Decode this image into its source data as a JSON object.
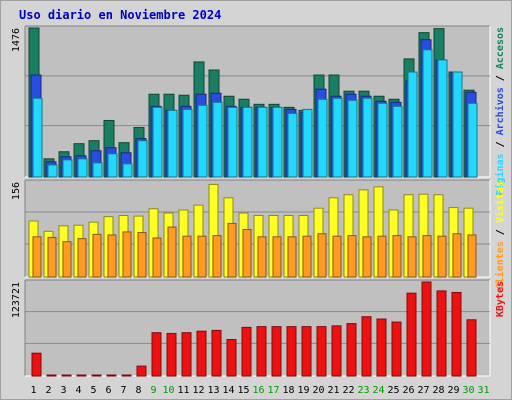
{
  "chart_data": {
    "type": "bar",
    "title": "Uso diario en Noviembre 2024",
    "categories": [
      "1",
      "2",
      "3",
      "4",
      "5",
      "6",
      "7",
      "8",
      "9",
      "10",
      "11",
      "12",
      "13",
      "14",
      "15",
      "16",
      "17",
      "18",
      "19",
      "20",
      "21",
      "22",
      "23",
      "24",
      "25",
      "26",
      "27",
      "28",
      "29",
      "30",
      "31"
    ],
    "weekend_days": [
      "9",
      "10",
      "16",
      "17",
      "23",
      "24",
      "30",
      "31"
    ],
    "colors": {
      "accesos": "#1a7f62",
      "archivos": "#2a4ce0",
      "paginas": "#22d8ff",
      "visitas": "#ffff22",
      "clientes": "#ff9a22",
      "kbytes": "#ee1111",
      "weekend_label": "#009900",
      "weekday_label": "#000000",
      "title": "#0000cc",
      "plot_bg": "#c0c0c0",
      "frame_bg": "#d4d4d4"
    },
    "panels": [
      {
        "name": "hits",
        "ymax_label": "1476",
        "ymax": 1476,
        "legend": [
          {
            "text": "Accesos",
            "color": "#1a7f62"
          },
          {
            "text": "Archivos",
            "color": "#2a4ce0"
          },
          {
            "text": "Páginas",
            "color": "#22d8ff"
          }
        ],
        "series": [
          {
            "name": "Accesos",
            "values": [
              1476,
              180,
              250,
              330,
              360,
              560,
              340,
              490,
              820,
              820,
              810,
              1140,
              1060,
              800,
              770,
              720,
              720,
              690,
              660,
              1010,
              1010,
              850,
              850,
              800,
              770,
              1170,
              1430,
              1470,
              1040,
              860,
              0
            ]
          },
          {
            "name": "Archivos",
            "values": [
              1010,
              150,
              200,
              210,
              260,
              290,
              240,
              380,
              700,
              660,
              700,
              820,
              830,
              700,
              690,
              690,
              690,
              670,
              640,
              870,
              800,
              820,
              800,
              750,
              740,
              950,
              1360,
              1160,
              1040,
              840,
              0
            ]
          },
          {
            "name": "Páginas",
            "values": [
              780,
              120,
              170,
              180,
              140,
              230,
              130,
              360,
              690,
              660,
              670,
              710,
              740,
              690,
              690,
              690,
              690,
              630,
              670,
              770,
              780,
              760,
              780,
              730,
              700,
              1040,
              1260,
              1160,
              1040,
              730,
              0
            ]
          }
        ]
      },
      {
        "name": "visits",
        "ymax_label": "156",
        "ymax": 156,
        "legend": [
          {
            "text": "Visitas",
            "color": "#ffff22"
          },
          {
            "text": "Clientes",
            "color": "#ff9a22"
          }
        ],
        "series": [
          {
            "name": "Visitas",
            "values": [
              92,
              75,
              84,
              85,
              90,
              99,
              101,
              100,
              112,
              105,
              110,
              118,
              152,
              130,
              105,
              101,
              101,
              101,
              101,
              113,
              130,
              135,
              143,
              148,
              110,
              135,
              136,
              135,
              114,
              113,
              0
            ]
          },
          {
            "name": "Clientes",
            "values": [
              66,
              65,
              58,
              63,
              70,
              69,
              74,
              73,
              64,
              82,
              67,
              67,
              68,
              88,
              78,
              66,
              66,
              66,
              67,
              71,
              67,
              68,
              66,
              67,
              68,
              66,
              68,
              67,
              71,
              69,
              0
            ]
          }
        ]
      },
      {
        "name": "kbytes",
        "ymax_label": "123721",
        "ymax": 123721,
        "legend": [
          {
            "text": "KBytes",
            "color": "#ee1111"
          }
        ],
        "series": [
          {
            "name": "KBytes",
            "values": [
              30000,
              1000,
              1000,
              1000,
              1000,
              1000,
              1000,
              13000,
              57000,
              56000,
              57000,
              59000,
              60000,
              48000,
              64000,
              65000,
              65000,
              65000,
              65000,
              65000,
              66000,
              69000,
              78000,
              75000,
              71000,
              109000,
              123721,
              112000,
              110000,
              74000,
              0
            ]
          }
        ]
      }
    ]
  }
}
